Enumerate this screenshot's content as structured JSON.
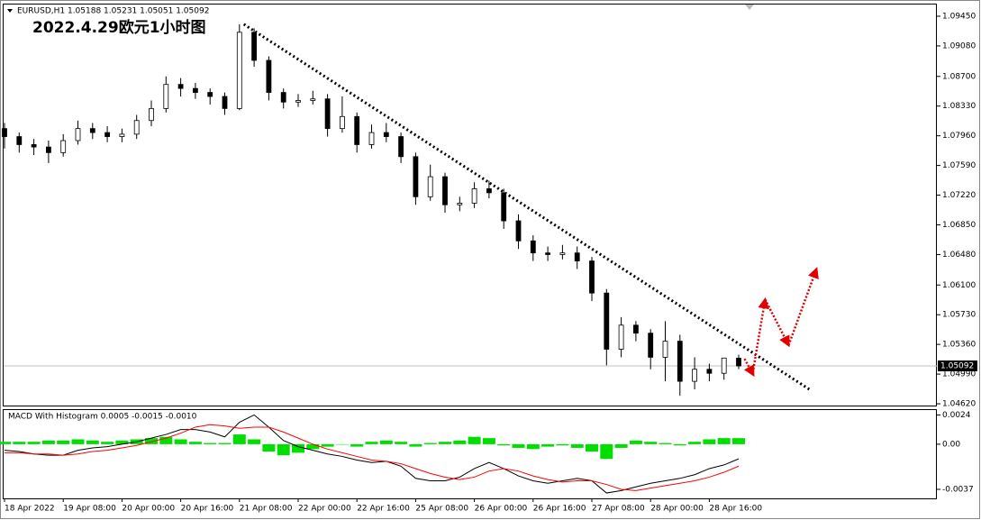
{
  "chart_data": [
    {
      "type": "candlestick",
      "header": "EURUSD,H1  1.05188 1.05231 1.05051 1.05092",
      "title": "2022.4.29欧元1小时图",
      "categories": [
        "18 Apr 2022",
        null,
        null,
        null,
        "19 Apr 08:00",
        null,
        null,
        null,
        "20 Apr 00:00",
        null,
        null,
        null,
        "20 Apr 16:00",
        null,
        null,
        null,
        "21 Apr 08:00",
        null,
        null,
        null,
        "22 Apr 00:00",
        null,
        null,
        null,
        "22 Apr 16:00",
        null,
        null,
        null,
        "25 Apr 08:00",
        null,
        null,
        null,
        "26 Apr 00:00",
        null,
        null,
        null,
        "26 Apr 16:00",
        null,
        null,
        null,
        "27 Apr 08:00",
        null,
        null,
        null,
        "28 Apr 00:00",
        null,
        null,
        null,
        "28 Apr 16:00",
        null,
        null
      ],
      "open": [
        1.0805,
        1.0795,
        1.0785,
        1.0782,
        1.0775,
        1.079,
        1.0805,
        1.08,
        1.0795,
        1.0798,
        1.0815,
        1.083,
        1.086,
        1.0855,
        1.085,
        1.0845,
        1.083,
        1.0925,
        1.089,
        1.085,
        1.0838,
        1.084,
        1.0842,
        1.0805,
        1.082,
        1.0785,
        1.08,
        1.0795,
        1.077,
        1.072,
        1.0745,
        1.071,
        1.0712,
        1.073,
        1.0725,
        1.069,
        1.0665,
        1.065,
        1.0648,
        1.065,
        1.064,
        1.06,
        1.053,
        1.056,
        1.055,
        1.052,
        1.054,
        1.049,
        1.0505,
        1.05,
        1.05188
      ],
      "high": [
        1.0812,
        1.08,
        1.0792,
        1.079,
        1.0798,
        1.0815,
        1.0812,
        1.0808,
        1.0805,
        1.0822,
        1.084,
        1.087,
        1.0868,
        1.0862,
        1.0855,
        1.085,
        1.0935,
        1.093,
        1.0895,
        1.0855,
        1.0848,
        1.0852,
        1.0848,
        1.0845,
        1.0825,
        1.081,
        1.0812,
        1.08,
        1.0775,
        1.076,
        1.075,
        1.072,
        1.0738,
        1.074,
        1.073,
        1.0698,
        1.0672,
        1.0658,
        1.066,
        1.0658,
        1.0645,
        1.0605,
        1.057,
        1.0565,
        1.0555,
        1.0565,
        1.0548,
        1.052,
        1.0512,
        1.0515,
        1.05231
      ],
      "low": [
        1.078,
        1.0775,
        1.0772,
        1.0762,
        1.077,
        1.0785,
        1.0792,
        1.0788,
        1.0788,
        1.0792,
        1.0808,
        1.0825,
        1.0845,
        1.0842,
        1.0835,
        1.0822,
        1.0828,
        1.0882,
        1.084,
        1.083,
        1.0832,
        1.0835,
        1.0795,
        1.08,
        1.0775,
        1.078,
        1.0788,
        1.0762,
        1.071,
        1.0715,
        1.07,
        1.0702,
        1.0706,
        1.0718,
        1.068,
        1.0655,
        1.064,
        1.064,
        1.0642,
        1.063,
        1.059,
        1.051,
        1.052,
        1.054,
        1.0505,
        1.049,
        1.0472,
        1.048,
        1.049,
        1.0492,
        1.05051
      ],
      "close": [
        1.0795,
        1.0785,
        1.0782,
        1.0775,
        1.079,
        1.0805,
        1.08,
        1.0795,
        1.0798,
        1.0815,
        1.083,
        1.086,
        1.0855,
        1.085,
        1.0845,
        1.083,
        1.0925,
        1.089,
        1.085,
        1.0838,
        1.084,
        1.0842,
        1.0805,
        1.082,
        1.0785,
        1.08,
        1.0795,
        1.077,
        1.072,
        1.0745,
        1.071,
        1.0712,
        1.073,
        1.0725,
        1.069,
        1.0665,
        1.065,
        1.0648,
        1.065,
        1.064,
        1.06,
        1.053,
        1.056,
        1.055,
        1.052,
        1.054,
        1.049,
        1.0505,
        1.05,
        1.0519,
        1.05092
      ],
      "ylim": [
        1.04598,
        1.09596
      ],
      "yticks": [
        {
          "value": 1.0945,
          "label": "1.09450"
        },
        {
          "value": 1.0908,
          "label": "1.09080"
        },
        {
          "value": 1.087,
          "label": "1.08700"
        },
        {
          "value": 1.0833,
          "label": "1.08330"
        },
        {
          "value": 1.0796,
          "label": "1.07960"
        },
        {
          "value": 1.0759,
          "label": "1.07590"
        },
        {
          "value": 1.0722,
          "label": "1.07220"
        },
        {
          "value": 1.0685,
          "label": "1.06850"
        },
        {
          "value": 1.0648,
          "label": "1.06480"
        },
        {
          "value": 1.061,
          "label": "1.06100"
        },
        {
          "value": 1.0573,
          "label": "1.05730"
        },
        {
          "value": 1.0536,
          "label": "1.05360"
        },
        {
          "value": 1.0499,
          "label": "1.04990"
        },
        {
          "value": 1.0462,
          "label": "1.04620"
        }
      ],
      "last_price": 1.05092,
      "trendline": {
        "x": [
          16.3,
          54.9
        ],
        "y": [
          1.0935,
          1.0479
        ]
      },
      "forecast": [
        {
          "x": [
            50.4,
            51.0
          ],
          "y": [
            1.0518,
            1.0498
          ]
        },
        {
          "x": [
            51.0,
            51.8
          ],
          "y": [
            1.0505,
            1.0592
          ]
        },
        {
          "x": [
            51.8,
            53.4
          ],
          "y": [
            1.0592,
            1.0535
          ]
        },
        {
          "x": [
            53.4,
            55.3
          ],
          "y": [
            1.0535,
            1.063
          ]
        }
      ]
    },
    {
      "type": "macd",
      "title": "MACD With Histogram 0.0005 -0.0015 -0.0010",
      "ylim": [
        -0.00444,
        0.0028
      ],
      "yticks": [
        0.0024,
        {
          "value": 0,
          "label": "0.00"
        },
        -0.0037
      ],
      "series": [
        {
          "name": "Histogram",
          "color": "#00e000",
          "values": [
            0.0002,
            0.0002,
            0.0002,
            0.0003,
            0.0003,
            0.0004,
            0.0003,
            0.0002,
            0.0003,
            0.0004,
            0.0005,
            0.0006,
            0.0004,
            0.0002,
            0.0001,
            0.0001,
            0.0008,
            0.0004,
            -0.0006,
            -0.0009,
            -0.0007,
            -0.0004,
            -0.0002,
            0.0,
            -0.0002,
            0.0002,
            0.0003,
            0.0002,
            -0.0002,
            0.0001,
            0.0002,
            0.0003,
            0.0006,
            0.0005,
            -0.0001,
            -0.0003,
            -0.0004,
            -0.0002,
            -0.0001,
            -0.0003,
            -0.0006,
            -0.0012,
            -0.0003,
            0.0003,
            0.0002,
            0.0001,
            -0.0001,
            0.0002,
            0.0004,
            0.0005,
            0.0005
          ]
        },
        {
          "name": "MACD",
          "color": "#000000",
          "values": [
            -0.0005,
            -0.0006,
            -0.0008,
            -0.0009,
            -0.0009,
            -0.0005,
            -0.0003,
            -0.0002,
            0.0,
            0.0002,
            0.0005,
            0.0008,
            0.0012,
            0.0012,
            0.001,
            0.0006,
            0.0018,
            0.0024,
            0.0014,
            0.0003,
            -0.0002,
            -0.0005,
            -0.0008,
            -0.001,
            -0.0013,
            -0.0015,
            -0.0014,
            -0.0018,
            -0.0028,
            -0.003,
            -0.003,
            -0.0027,
            -0.002,
            -0.0015,
            -0.002,
            -0.0026,
            -0.003,
            -0.0032,
            -0.003,
            -0.0028,
            -0.003,
            -0.004,
            -0.0038,
            -0.0035,
            -0.0032,
            -0.003,
            -0.0028,
            -0.0025,
            -0.002,
            -0.0017,
            -0.0012
          ]
        },
        {
          "name": "Signal",
          "color": "#ff0000",
          "values": [
            -0.0007,
            -0.0007,
            -0.0008,
            -0.0008,
            -0.0009,
            -0.0008,
            -0.0006,
            -0.0005,
            -0.0003,
            -0.0001,
            0.0002,
            0.0005,
            0.0009,
            0.0014,
            0.0016,
            0.0015,
            0.0013,
            0.0014,
            0.0014,
            0.001,
            0.0005,
            0.0,
            -0.0004,
            -0.0007,
            -0.001,
            -0.0013,
            -0.0014,
            -0.0016,
            -0.002,
            -0.0024,
            -0.0027,
            -0.0029,
            -0.0027,
            -0.0022,
            -0.002,
            -0.0022,
            -0.0026,
            -0.0029,
            -0.0031,
            -0.003,
            -0.003,
            -0.0033,
            -0.0037,
            -0.0038,
            -0.0036,
            -0.0034,
            -0.0032,
            -0.003,
            -0.0027,
            -0.0023,
            -0.0018
          ]
        }
      ]
    }
  ]
}
